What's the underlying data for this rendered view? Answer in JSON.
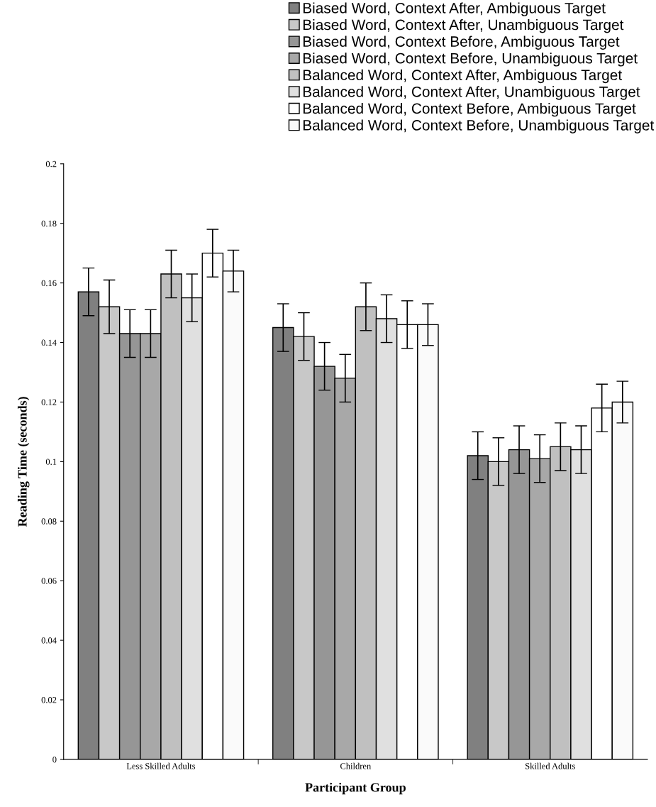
{
  "chart_data": {
    "type": "bar",
    "xlabel": "Participant Group",
    "ylabel": "Reading Time (seconds)",
    "categories": [
      "Less Skilled Adults",
      "Children",
      "Skilled Adults"
    ],
    "series": [
      {
        "name": "Biased Word, Context After, Ambiguous Target",
        "color": "#808080",
        "values": [
          0.157,
          0.145,
          0.102
        ],
        "errors": [
          0.008,
          0.008,
          0.008
        ]
      },
      {
        "name": "Biased Word, Context After, Unambiguous Target",
        "color": "#c8c8c8",
        "values": [
          0.152,
          0.142,
          0.1
        ],
        "errors": [
          0.009,
          0.008,
          0.008
        ]
      },
      {
        "name": "Biased Word, Context Before, Ambiguous Target",
        "color": "#969696",
        "values": [
          0.143,
          0.132,
          0.104
        ],
        "errors": [
          0.008,
          0.008,
          0.008
        ]
      },
      {
        "name": "Biased Word, Context Before, Unambiguous Target",
        "color": "#a8a8a8",
        "values": [
          0.143,
          0.128,
          0.101
        ],
        "errors": [
          0.008,
          0.008,
          0.008
        ]
      },
      {
        "name": "Balanced Word, Context After, Ambiguous Target",
        "color": "#c0c0c0",
        "values": [
          0.163,
          0.152,
          0.105
        ],
        "errors": [
          0.008,
          0.008,
          0.008
        ]
      },
      {
        "name": "Balanced Word, Context After, Unambiguous Target",
        "color": "#e0e0e0",
        "values": [
          0.155,
          0.148,
          0.104
        ],
        "errors": [
          0.008,
          0.008,
          0.008
        ]
      },
      {
        "name": "Balanced Word, Context Before, Ambiguous Target",
        "color": "#ffffff",
        "values": [
          0.17,
          0.146,
          0.118
        ],
        "errors": [
          0.008,
          0.008,
          0.008
        ]
      },
      {
        "name": "Balanced Word, Context Before, Unambiguous Target",
        "color": "#fafafa",
        "values": [
          0.164,
          0.146,
          0.12
        ],
        "errors": [
          0.007,
          0.007,
          0.007
        ]
      }
    ],
    "ylim": [
      0,
      0.2
    ],
    "yticks": [
      {
        "value": 0,
        "label": "0"
      },
      0.02,
      0.04,
      0.06,
      0.08,
      {
        "value": 0.1,
        "label": "0.1"
      },
      0.12,
      0.14,
      0.16,
      0.18,
      {
        "value": 0.2,
        "label": "0.2"
      }
    ],
    "grid": false,
    "legend": "top right"
  }
}
